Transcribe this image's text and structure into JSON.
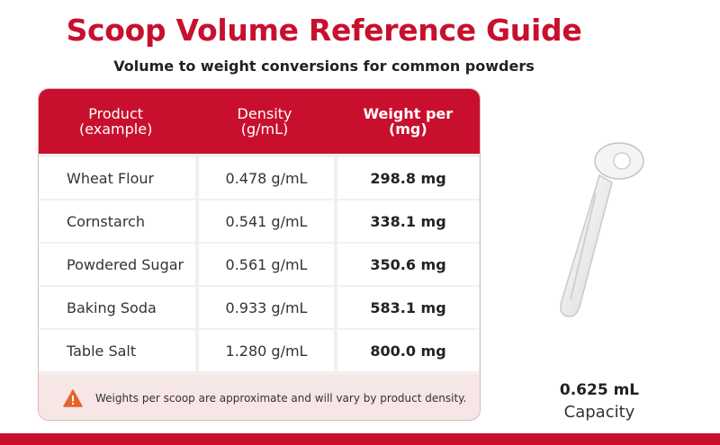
{
  "title": "Scoop Volume Reference Guide",
  "subtitle": "Volume to weight conversions for common powders",
  "table": {
    "headers": [
      {
        "line1": "Product",
        "line2": "(example)"
      },
      {
        "line1": "Density",
        "line2": "(g/mL)"
      },
      {
        "line1": "Weight per",
        "line2": "(mg)"
      }
    ],
    "rows": [
      {
        "product": "Wheat Flour",
        "density": "0.478 g/mL",
        "weight": "298.8 mg"
      },
      {
        "product": "Cornstarch",
        "density": "0.541 g/mL",
        "weight": "338.1 mg"
      },
      {
        "product": "Powdered Sugar",
        "density": "0.561 g/mL",
        "weight": "350.6 mg"
      },
      {
        "product": "Baking Soda",
        "density": "0.933 g/mL",
        "weight": "583.1 mg"
      },
      {
        "product": "Table Salt",
        "density": "1.280 g/mL",
        "weight": "800.0 mg"
      }
    ]
  },
  "note": {
    "icon": "warning-icon",
    "text": "Weights per scoop are approximate and will vary by product density."
  },
  "capacity": {
    "value": "0.625 mL",
    "label": "Capacity"
  },
  "colors": {
    "brand_red": "#c8102e",
    "warning_orange": "#e8632b"
  }
}
